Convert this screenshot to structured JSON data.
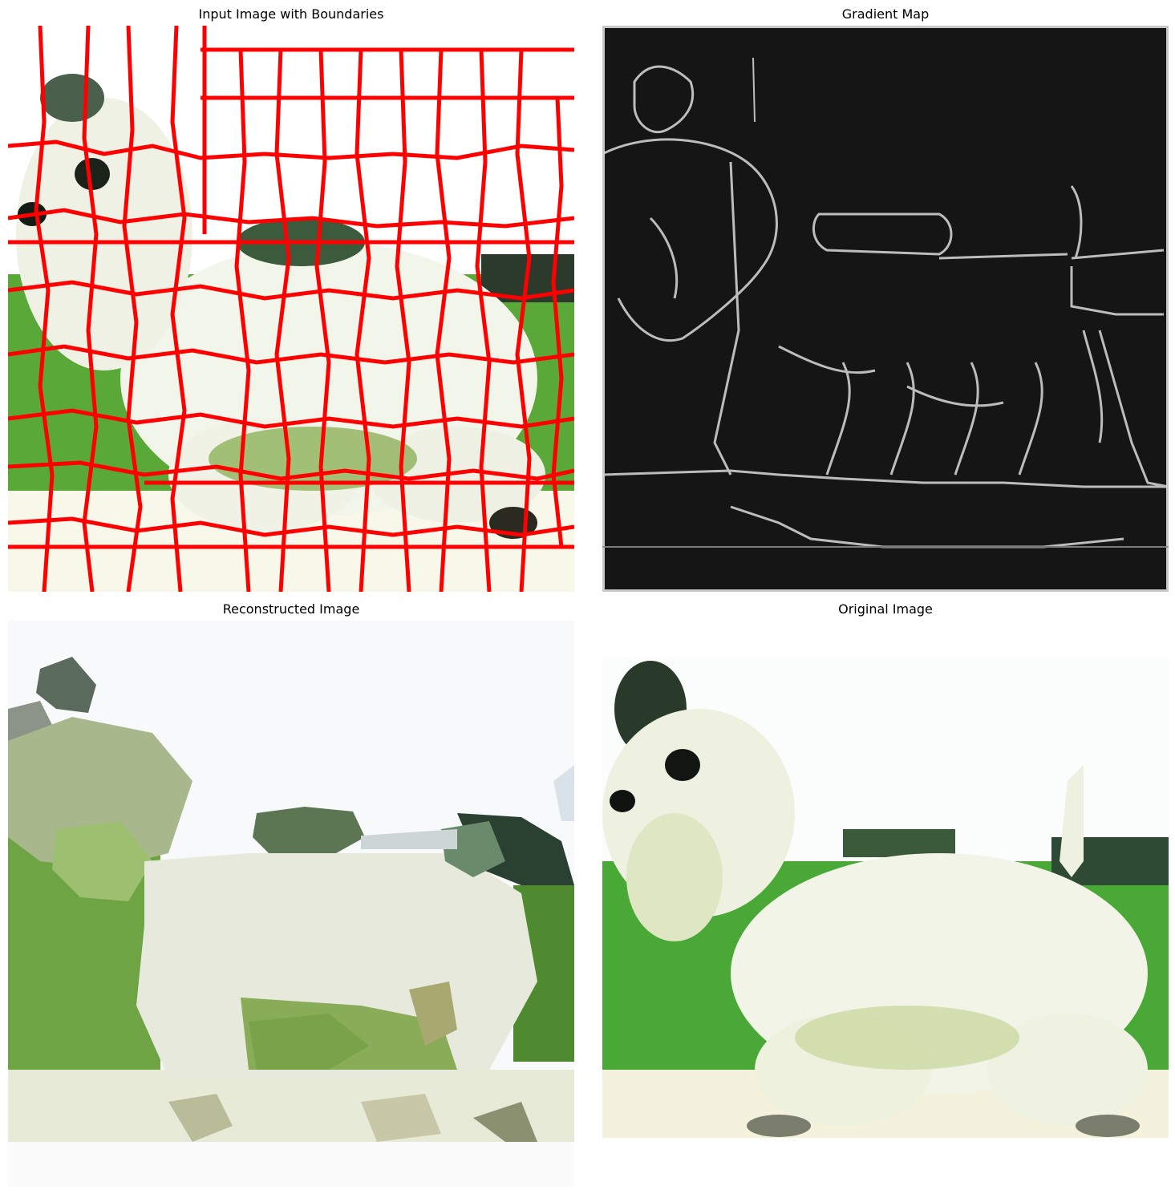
{
  "panels": [
    {
      "title": "Input Image with Boundaries"
    },
    {
      "title": "Gradient Map"
    },
    {
      "title": "Reconstructed Image"
    },
    {
      "title": "Original Image"
    }
  ],
  "colors": {
    "boundary": "#ff0000",
    "grass": "#5aa838",
    "background": "#ffffff",
    "gradient_bg": "#151515",
    "dog_white": "#f3f5ea"
  }
}
